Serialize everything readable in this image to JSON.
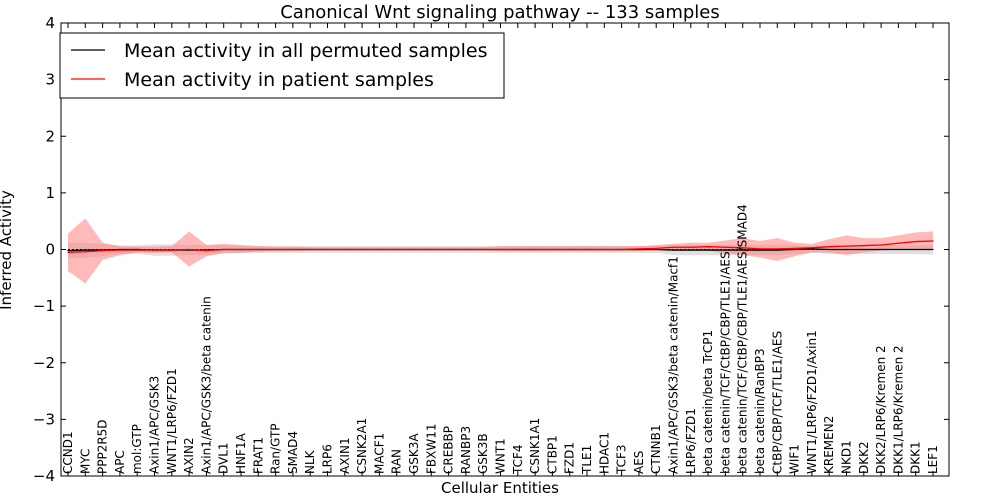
{
  "chart_data": {
    "type": "line",
    "title": "Canonical Wnt signaling pathway -- 133 samples",
    "xlabel": "Cellular Entities",
    "ylabel": "Inferred Activity",
    "ylim": [
      -4,
      4
    ],
    "yticks": [
      -4,
      -3,
      -2,
      -1,
      0,
      1,
      2,
      3,
      4
    ],
    "ytick_labels": [
      "−4",
      "−3",
      "−2",
      "−1",
      "0",
      "1",
      "2",
      "3",
      "4"
    ],
    "legend_position": "upper-left",
    "categories": [
      "CCND1",
      "MYC",
      "PPP2R5D",
      "APC",
      "mol:GTP",
      "Axin1/APC/GSK3",
      "WNT1/LRP6/FZD1",
      "AXIN2",
      "Axin1/APC/GSK3/beta catenin",
      "DVL1",
      "HNF1A",
      "FRAT1",
      "Ran/GTP",
      "SMAD4",
      "NLK",
      "LRP6",
      "AXIN1",
      "CSNK2A1",
      "MACF1",
      "RAN",
      "GSK3A",
      "FBXW11",
      "CREBBP",
      "RANBP3",
      "GSK3B",
      "WNT1",
      "TCF4",
      "CSNK1A1",
      "CTBP1",
      "FZD1",
      "TLE1",
      "HDAC1",
      "TCF3",
      "AES",
      "CTNNB1",
      "Axin1/APC/GSK3/beta catenin/Macf1",
      "LRP6/FZD1",
      "beta catenin/beta TrCP1",
      "beta catenin/TCF/CtBP/CBP/TLE1/AES",
      "beta catenin/TCF/CtBP/CBP/TLE1/AES/SMAD4",
      "beta catenin/RanBP3",
      "CtBP/CBP/TCF/TLE1/AES",
      "WIF1",
      "WNT1/LRP6/FZD1/Axin1",
      "KREMEN2",
      "NKD1",
      "DKK2",
      "DKK2/LRP6/Kremen 2",
      "DKK1/LRP6/Kremen 2",
      "DKK1",
      "LEF1"
    ],
    "series": [
      {
        "name": "Mean activity in all permuted samples",
        "color": "#000000",
        "values": [
          -0.02,
          -0.01,
          -0.01,
          0,
          0,
          -0.01,
          -0.01,
          -0.01,
          -0.01,
          0,
          0,
          0,
          0,
          0,
          0,
          0,
          0,
          0,
          0,
          0,
          0,
          0,
          0,
          0,
          0,
          0,
          0,
          0,
          0,
          0,
          0,
          0,
          0,
          0,
          0,
          -0.01,
          -0.01,
          -0.01,
          -0.01,
          -0.01,
          -0.01,
          -0.01,
          0,
          0.01,
          0,
          0,
          0,
          0,
          0,
          0,
          0
        ],
        "band_lower": [
          -0.15,
          -0.15,
          -0.12,
          -0.08,
          -0.08,
          -0.11,
          -0.11,
          -0.1,
          -0.1,
          -0.07,
          -0.06,
          -0.06,
          -0.06,
          -0.06,
          -0.06,
          -0.06,
          -0.06,
          -0.06,
          -0.06,
          -0.06,
          -0.06,
          -0.06,
          -0.06,
          -0.06,
          -0.06,
          -0.06,
          -0.06,
          -0.06,
          -0.06,
          -0.06,
          -0.06,
          -0.06,
          -0.06,
          -0.06,
          -0.06,
          -0.1,
          -0.1,
          -0.1,
          -0.1,
          -0.1,
          -0.1,
          -0.1,
          -0.08,
          -0.06,
          -0.08,
          -0.08,
          -0.08,
          -0.08,
          -0.08,
          -0.08,
          -0.09
        ],
        "band_upper": [
          0.12,
          0.12,
          0.1,
          0.07,
          0.07,
          0.09,
          0.09,
          0.08,
          0.08,
          0.07,
          0.06,
          0.06,
          0.06,
          0.06,
          0.06,
          0.06,
          0.06,
          0.06,
          0.06,
          0.06,
          0.06,
          0.06,
          0.06,
          0.06,
          0.06,
          0.06,
          0.06,
          0.06,
          0.06,
          0.06,
          0.06,
          0.06,
          0.06,
          0.06,
          0.06,
          0.08,
          0.08,
          0.08,
          0.08,
          0.08,
          0.08,
          0.08,
          0.07,
          0.06,
          0.07,
          0.07,
          0.07,
          0.07,
          0.07,
          0.07,
          0.08
        ],
        "band_color": "#c8c8c8"
      },
      {
        "name": "Mean activity in patient samples",
        "color": "#ff0000",
        "values": [
          -0.05,
          -0.04,
          -0.02,
          -0.01,
          -0.01,
          -0.01,
          -0.01,
          0,
          -0.02,
          0,
          0,
          0,
          0,
          0,
          0,
          0,
          0,
          0,
          0,
          0,
          0,
          0,
          0,
          0,
          0,
          0,
          0,
          0,
          0,
          0,
          0,
          0,
          0,
          0.01,
          0.02,
          0.04,
          0.04,
          0.05,
          0.04,
          0.03,
          0.01,
          0.01,
          0.02,
          0.03,
          0.05,
          0.06,
          0.07,
          0.08,
          0.11,
          0.14,
          0.15
        ],
        "band_lower": [
          -0.38,
          -0.6,
          -0.18,
          -0.1,
          -0.05,
          -0.06,
          -0.05,
          -0.3,
          -0.12,
          -0.06,
          -0.06,
          -0.04,
          -0.03,
          -0.03,
          -0.02,
          -0.02,
          -0.02,
          -0.02,
          -0.02,
          -0.02,
          -0.02,
          -0.02,
          -0.02,
          -0.02,
          -0.02,
          -0.03,
          -0.03,
          -0.03,
          -0.03,
          -0.03,
          -0.03,
          -0.03,
          -0.03,
          -0.03,
          -0.02,
          -0.02,
          -0.02,
          -0.02,
          -0.07,
          -0.1,
          -0.14,
          -0.2,
          -0.12,
          -0.05,
          -0.05,
          -0.1,
          -0.05,
          -0.02,
          0,
          0,
          0
        ],
        "band_upper": [
          0.28,
          0.55,
          0.12,
          0.06,
          0.05,
          0.05,
          0.06,
          0.32,
          0.08,
          0.1,
          0.08,
          0.06,
          0.05,
          0.05,
          0.04,
          0.04,
          0.04,
          0.04,
          0.04,
          0.04,
          0.04,
          0.04,
          0.04,
          0.04,
          0.04,
          0.06,
          0.06,
          0.06,
          0.06,
          0.06,
          0.06,
          0.06,
          0.06,
          0.06,
          0.08,
          0.1,
          0.12,
          0.12,
          0.16,
          0.2,
          0.15,
          0.2,
          0.12,
          0.1,
          0.18,
          0.25,
          0.2,
          0.2,
          0.25,
          0.3,
          0.32
        ],
        "band_color": "#ff8080"
      }
    ]
  }
}
